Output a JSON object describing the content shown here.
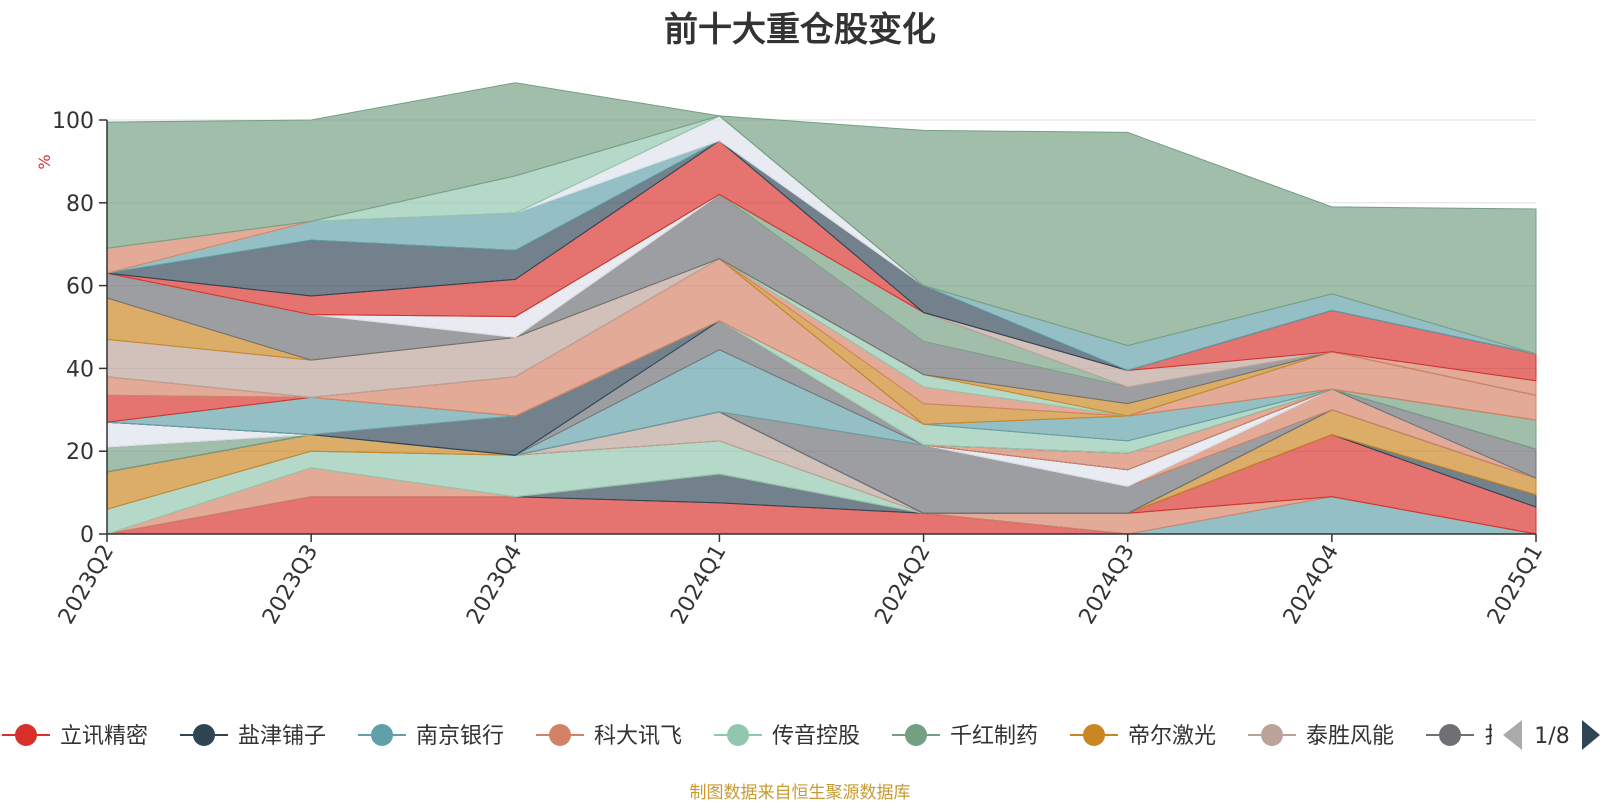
{
  "title": "前十大重仓股变化",
  "source_note": "制图数据来自恒生聚源数据库",
  "chart_data": {
    "type": "area",
    "stacked": true,
    "title": "前十大重仓股变化",
    "ylabel": "%",
    "ylim": [
      0,
      100
    ],
    "yticks": [
      0,
      20,
      40,
      60,
      80,
      100
    ],
    "categories": [
      "2023Q2",
      "2023Q3",
      "2023Q4",
      "2024Q1",
      "2024Q2",
      "2024Q3",
      "2024Q4",
      "2025Q1"
    ],
    "legend_position": "bottom",
    "series": [
      {
        "name": "立讯精密",
        "color": "#d9302c",
        "values": [
          0,
          9,
          9,
          7.5,
          5,
          0,
          0,
          0
        ]
      },
      {
        "name": "盐津铺子",
        "color": "#2f4554",
        "values": [
          0,
          0,
          0,
          7,
          0,
          0,
          0,
          0
        ]
      },
      {
        "name": "南京银行",
        "color": "#61a0a8",
        "values": [
          0,
          0,
          0,
          0,
          0,
          0,
          9,
          0
        ]
      },
      {
        "name": "科大讯飞",
        "color": "#d48265",
        "values": [
          0,
          7,
          0,
          0,
          0,
          5,
          0,
          0
        ]
      },
      {
        "name": "传音控股",
        "color": "#91c7ae",
        "values": [
          6,
          4,
          10,
          8,
          0,
          0,
          0,
          0
        ]
      },
      {
        "name": "千红制药",
        "color": "#749f83",
        "values": [
          0,
          0,
          0,
          0,
          0,
          0,
          0,
          0
        ]
      },
      {
        "name": "帝尔激光",
        "color": "#ca8622",
        "values": [
          9,
          4,
          0,
          0,
          0,
          0,
          0,
          0
        ]
      },
      {
        "name": "泰胜风能",
        "color": "#bda29a",
        "values": [
          0,
          0,
          0,
          7,
          0,
          0,
          0,
          0
        ]
      }
    ],
    "background_series": [
      {
        "color": "#d9302c",
        "values": [
          0,
          0,
          0,
          0,
          0,
          0,
          15,
          6.5
        ]
      },
      {
        "color": "#2f4554",
        "values": [
          0,
          0,
          0,
          0,
          0,
          0,
          0,
          3
        ]
      },
      {
        "color": "#ca8622",
        "values": [
          0,
          0,
          0,
          0,
          0,
          0,
          6,
          4
        ]
      },
      {
        "color": "#91c7ae",
        "values": [
          0,
          0,
          0,
          0,
          0,
          0,
          0,
          0
        ]
      },
      {
        "color": "#2f4554",
        "values": [
          0,
          0,
          0,
          0,
          0,
          0,
          0,
          0
        ]
      },
      {
        "color": "#749f83",
        "values": [
          6,
          0,
          0,
          0,
          0,
          0,
          0,
          0
        ]
      },
      {
        "color": "#6e7074",
        "values": [
          0,
          0,
          0,
          0,
          16.5,
          6.5,
          0,
          0
        ]
      },
      {
        "color": "#d48265",
        "values": [
          0,
          0,
          0,
          0,
          0,
          0,
          5,
          0
        ]
      },
      {
        "color": "#61a0a8",
        "values": [
          0,
          0,
          0,
          15,
          0,
          0,
          0,
          0
        ]
      },
      {
        "color": "#dde2ea",
        "values": [
          6,
          0,
          0,
          0,
          0,
          4,
          0,
          0
        ]
      },
      {
        "color": "#6e7074",
        "values": [
          0,
          0,
          0,
          7,
          0,
          0,
          0,
          7
        ]
      },
      {
        "color": "#2f4554",
        "values": [
          0,
          0,
          9.5,
          0,
          0,
          0,
          0,
          0
        ]
      },
      {
        "color": "#d48265",
        "values": [
          0,
          0,
          0,
          0,
          0,
          4,
          0,
          0
        ]
      },
      {
        "color": "#61a0a8",
        "values": [
          0,
          9,
          0,
          0,
          0,
          0,
          0,
          0
        ]
      },
      {
        "color": "#749f83",
        "values": [
          0,
          0,
          0,
          0,
          0,
          0,
          0,
          7
        ]
      },
      {
        "color": "#d9302c",
        "values": [
          6.5,
          0,
          0,
          0,
          0,
          0,
          0,
          0
        ]
      },
      {
        "color": "#91c7ae",
        "values": [
          0,
          0,
          0,
          0,
          5,
          3,
          0,
          0
        ]
      },
      {
        "color": "#d48265",
        "values": [
          4.5,
          0,
          9.5,
          15,
          0,
          0,
          0,
          0
        ]
      },
      {
        "color": "#61a0a8",
        "values": [
          0,
          0,
          0,
          0,
          0,
          6,
          0,
          0
        ]
      },
      {
        "color": "#ca8622",
        "values": [
          0,
          0,
          0,
          0,
          5,
          0,
          0,
          0
        ]
      },
      {
        "color": "#d48265",
        "values": [
          0,
          0,
          0,
          0,
          4,
          0,
          9,
          6
        ]
      },
      {
        "color": "#bda29a",
        "values": [
          9,
          9,
          9.5,
          0,
          0,
          0,
          0,
          0
        ]
      },
      {
        "color": "#91c7ae",
        "values": [
          0,
          0,
          0,
          0,
          3,
          0,
          0,
          0
        ]
      },
      {
        "color": "#ca8622",
        "values": [
          10,
          0,
          0,
          0,
          0,
          3,
          0,
          0
        ]
      },
      {
        "color": "#6e7074",
        "values": [
          6,
          11,
          0,
          15.5,
          8,
          4,
          0,
          0
        ]
      },
      {
        "color": "#d48265",
        "values": [
          0,
          0,
          0,
          0,
          0,
          0,
          0,
          3.5
        ]
      },
      {
        "color": "#dde2ea",
        "values": [
          0,
          0,
          5,
          0,
          0,
          0,
          0,
          0
        ]
      },
      {
        "color": "#749f83",
        "values": [
          0,
          0,
          0,
          0,
          7,
          0,
          0,
          0
        ]
      },
      {
        "color": "#bda29a",
        "values": [
          0,
          0,
          0,
          0,
          0,
          4,
          0,
          0
        ]
      },
      {
        "color": "#d9302c",
        "values": [
          0,
          4.5,
          9,
          13,
          0,
          0,
          10,
          6.5
        ]
      },
      {
        "color": "#6e7074",
        "values": [
          0,
          0,
          0,
          0,
          0,
          0,
          0,
          0
        ]
      },
      {
        "color": "#2f4554",
        "values": [
          0,
          13.5,
          7,
          0,
          6.5,
          0,
          0,
          0
        ]
      },
      {
        "color": "#61a0a8",
        "values": [
          0,
          4.5,
          9,
          0,
          0,
          6,
          4,
          0
        ]
      },
      {
        "color": "#dde2ea",
        "values": [
          0,
          0,
          0,
          6,
          0,
          0,
          0,
          0
        ]
      },
      {
        "color": "#d48265",
        "values": [
          6,
          0,
          0,
          0,
          0,
          0,
          0,
          0
        ]
      },
      {
        "color": "#91c7ae",
        "values": [
          0,
          0,
          9,
          0,
          0,
          0,
          0,
          0
        ]
      },
      {
        "color": "#749f83",
        "values": [
          30.5,
          24.5,
          22.5,
          0,
          37.5,
          51.5,
          21,
          35
        ]
      }
    ],
    "legend_overflow_item": "扌",
    "legend_page": "1/8"
  }
}
